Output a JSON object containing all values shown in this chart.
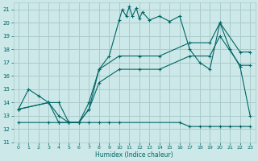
{
  "xlabel": "Humidex (Indice chaleur)",
  "bg_color": "#cce8e8",
  "grid_color": "#aacccc",
  "line_color": "#006666",
  "xlim": [
    -0.5,
    23.5
  ],
  "ylim": [
    11,
    21.5
  ],
  "yticks": [
    11,
    12,
    13,
    14,
    15,
    16,
    17,
    18,
    19,
    20,
    21
  ],
  "xticks": [
    0,
    1,
    2,
    3,
    4,
    5,
    6,
    7,
    8,
    9,
    10,
    11,
    12,
    13,
    14,
    15,
    16,
    17,
    18,
    19,
    20,
    21,
    22,
    23
  ],
  "line1_x": [
    0,
    1,
    2,
    3,
    4,
    5,
    6,
    7,
    8,
    9,
    10,
    10.3,
    10.7,
    11,
    11.3,
    11.7,
    12,
    12.3,
    13,
    14,
    15,
    16,
    17,
    18,
    19,
    20,
    21,
    22,
    23
  ],
  "line1_y": [
    13.5,
    15.0,
    14.5,
    14.0,
    13.0,
    12.5,
    12.5,
    13.5,
    16.5,
    17.5,
    20.2,
    21.0,
    20.5,
    21.2,
    20.5,
    21.1,
    20.3,
    20.8,
    20.2,
    20.5,
    20.1,
    20.5,
    18.0,
    17.0,
    16.5,
    20.0,
    18.0,
    16.7,
    13.0
  ],
  "line2_x": [
    0,
    3,
    4,
    5,
    6,
    7,
    8,
    10,
    12,
    14,
    17,
    19,
    20,
    22,
    23
  ],
  "line2_y": [
    13.5,
    14.0,
    14.0,
    12.5,
    12.5,
    14.0,
    16.5,
    17.5,
    17.5,
    17.5,
    18.5,
    18.5,
    20.0,
    17.8,
    17.8
  ],
  "line3_x": [
    0,
    3,
    4,
    5,
    6,
    7,
    8,
    10,
    12,
    14,
    17,
    19,
    20,
    22,
    23
  ],
  "line3_y": [
    13.5,
    14.0,
    12.5,
    12.5,
    12.5,
    13.5,
    15.5,
    16.5,
    16.5,
    16.5,
    17.5,
    17.5,
    19.0,
    16.8,
    16.8
  ],
  "line4_x": [
    0,
    3,
    4,
    5,
    6,
    7,
    8,
    9,
    10,
    16,
    17,
    18,
    19,
    20,
    21,
    22,
    23
  ],
  "line4_y": [
    12.5,
    12.5,
    12.5,
    12.5,
    12.5,
    12.5,
    12.5,
    12.5,
    12.5,
    12.5,
    12.2,
    12.2,
    12.2,
    12.2,
    12.2,
    12.2,
    12.2
  ]
}
